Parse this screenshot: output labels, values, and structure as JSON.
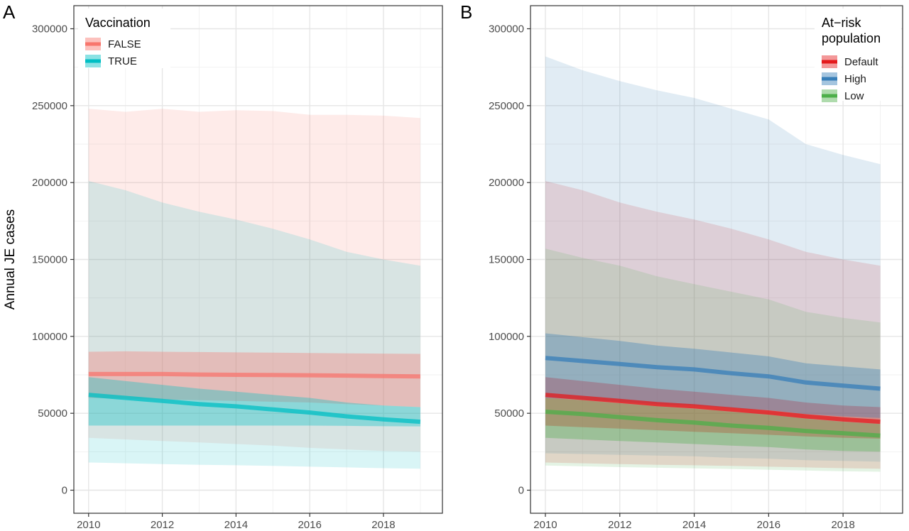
{
  "chart_data": [
    {
      "panel_tag": "A",
      "type": "line",
      "ylabel": "Annual JE cases",
      "xlabel": "",
      "xlim": [
        2009.6,
        2019.6
      ],
      "ylim": [
        -15000,
        315000
      ],
      "x_ticks": [
        2010,
        2012,
        2014,
        2016,
        2018
      ],
      "y_ticks": [
        0,
        50000,
        100000,
        150000,
        200000,
        250000,
        300000
      ],
      "grid": true,
      "legend": {
        "title_lines": [
          "Vaccination"
        ],
        "position": "top-left"
      },
      "x": [
        2010,
        2011,
        2012,
        2013,
        2014,
        2015,
        2016,
        2017,
        2018,
        2019
      ],
      "series": [
        {
          "name": "FALSE",
          "color": "#f8766d",
          "median": [
            75500,
            75500,
            75500,
            75200,
            75000,
            74900,
            74700,
            74500,
            74200,
            74000
          ],
          "band_inner": {
            "lower": [
              60000,
              59500,
              59000,
              58500,
              58000,
              57500,
              57000,
              56000,
              55000,
              54000
            ],
            "upper": [
              90000,
              90300,
              90000,
              89800,
              89600,
              89400,
              89200,
              89000,
              88800,
              88600
            ]
          },
          "band_outer": {
            "lower": [
              34000,
              33000,
              32000,
              31000,
              30000,
              29000,
              27500,
              26500,
              25500,
              25000
            ],
            "upper": [
              248000,
              246000,
              248000,
              246000,
              247000,
              246500,
              244000,
              244000,
              243500,
              242000
            ]
          }
        },
        {
          "name": "TRUE",
          "color": "#00bfc4",
          "median": [
            62000,
            60000,
            58000,
            56000,
            54500,
            52500,
            50500,
            48000,
            46000,
            44500
          ],
          "band_inner": {
            "lower": [
              42000,
              42000,
              42000,
              42000,
              42000,
              42000,
              42000,
              41800,
              41600,
              41500
            ],
            "upper": [
              73500,
              71000,
              68500,
              66000,
              64000,
              62000,
              60000,
              57000,
              55000,
              54000
            ]
          },
          "band_outer": {
            "lower": [
              18000,
              17500,
              17000,
              16500,
              16200,
              15800,
              15300,
              14800,
              14300,
              14000
            ],
            "upper": [
              201000,
              195000,
              187000,
              181000,
              176000,
              170000,
              163000,
              155000,
              150000,
              146000
            ]
          }
        }
      ]
    },
    {
      "panel_tag": "B",
      "type": "line",
      "ylabel": "",
      "xlabel": "",
      "xlim": [
        2009.6,
        2019.6
      ],
      "ylim": [
        -15000,
        315000
      ],
      "x_ticks": [
        2010,
        2012,
        2014,
        2016,
        2018
      ],
      "y_ticks": [
        0,
        50000,
        100000,
        150000,
        200000,
        250000,
        300000
      ],
      "grid": true,
      "legend": {
        "title_lines": [
          "At−risk",
          "population"
        ],
        "position": "top-right"
      },
      "x": [
        2010,
        2011,
        2012,
        2013,
        2014,
        2015,
        2016,
        2017,
        2018,
        2019
      ],
      "series": [
        {
          "name": "Default",
          "color": "#e41a1c",
          "median": [
            62000,
            60000,
            58000,
            56000,
            54500,
            52500,
            50500,
            48000,
            46000,
            44500
          ],
          "band_inner": {
            "lower": [
              42000,
              41000,
              40000,
              39000,
              38000,
              37000,
              36000,
              35000,
              34000,
              33500
            ],
            "upper": [
              73500,
              71000,
              68500,
              66000,
              64000,
              62000,
              60000,
              57000,
              55000,
              54000
            ]
          },
          "band_outer": {
            "lower": [
              18000,
              17500,
              17000,
              16500,
              16200,
              15800,
              15300,
              14800,
              14300,
              14000
            ],
            "upper": [
              201000,
              195000,
              187000,
              181000,
              176000,
              170000,
              163000,
              155000,
              150000,
              146000
            ]
          }
        },
        {
          "name": "High",
          "color": "#377eb8",
          "median": [
            86000,
            84000,
            82000,
            80000,
            78500,
            76000,
            74000,
            70000,
            68000,
            66000
          ],
          "band_inner": {
            "lower": [
              60000,
              59000,
              57500,
              56000,
              55000,
              53500,
              52000,
              49500,
              48000,
              47000
            ],
            "upper": [
              102000,
              99500,
              97000,
              94000,
              92000,
              89500,
              87000,
              82500,
              80500,
              78500
            ]
          },
          "band_outer": {
            "lower": [
              24000,
              23500,
              23000,
              22500,
              22000,
              21000,
              20500,
              19500,
              19000,
              18500
            ],
            "upper": [
              282000,
              273000,
              266000,
              260000,
              255000,
              248000,
              241000,
              225000,
              218000,
              212000
            ]
          }
        },
        {
          "name": "Low",
          "color": "#4daf4a",
          "median": [
            51000,
            49500,
            47500,
            45500,
            44000,
            42000,
            40500,
            38500,
            37000,
            35500
          ],
          "band_inner": {
            "lower": [
              34000,
              33000,
              32000,
              31000,
              30000,
              29000,
              28000,
              26500,
              25500,
              25000
            ],
            "upper": [
              60000,
              58500,
              56500,
              54500,
              53000,
              51000,
              49000,
              46500,
              44500,
              43000
            ]
          },
          "band_outer": {
            "lower": [
              16000,
              15500,
              15000,
              14600,
              14200,
              13800,
              13300,
              12800,
              12300,
              12000
            ],
            "upper": [
              157000,
              151000,
              146000,
              139000,
              134000,
              129000,
              124000,
              116000,
              112000,
              109000
            ]
          }
        }
      ]
    }
  ]
}
